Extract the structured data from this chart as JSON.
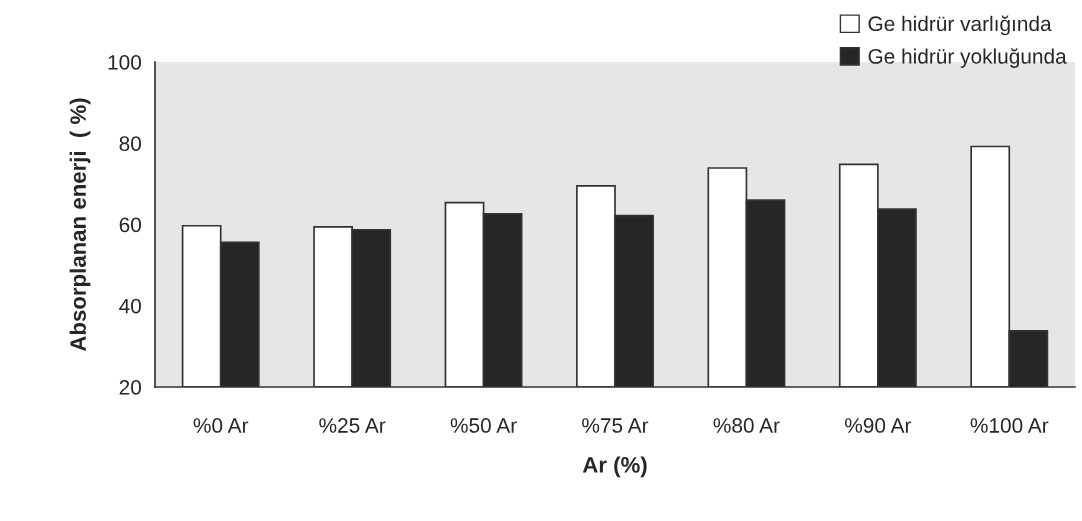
{
  "chart_data": {
    "type": "bar",
    "xlabel": "Ar (%)",
    "ylabel": "Absorplanan enerji  ( %)",
    "categories": [
      "%0 Ar",
      "%25 Ar",
      "%50 Ar",
      "%75 Ar",
      "%80 Ar",
      "%90 Ar",
      "%100 Ar"
    ],
    "series": [
      {
        "name": "Ge hidrür varlığında",
        "color": "#ffffff",
        "values": [
          59.7,
          59.4,
          65.4,
          69.5,
          73.9,
          74.8,
          79.2
        ]
      },
      {
        "name": "Ge hidrür yokluğunda",
        "color": "#262626",
        "values": [
          55.6,
          58.7,
          62.6,
          62.2,
          66.0,
          63.8,
          33.8
        ]
      }
    ],
    "ylim": [
      20,
      100
    ],
    "yticks": [
      20,
      40,
      60,
      80,
      100
    ],
    "grid": false,
    "legend": "top right"
  }
}
